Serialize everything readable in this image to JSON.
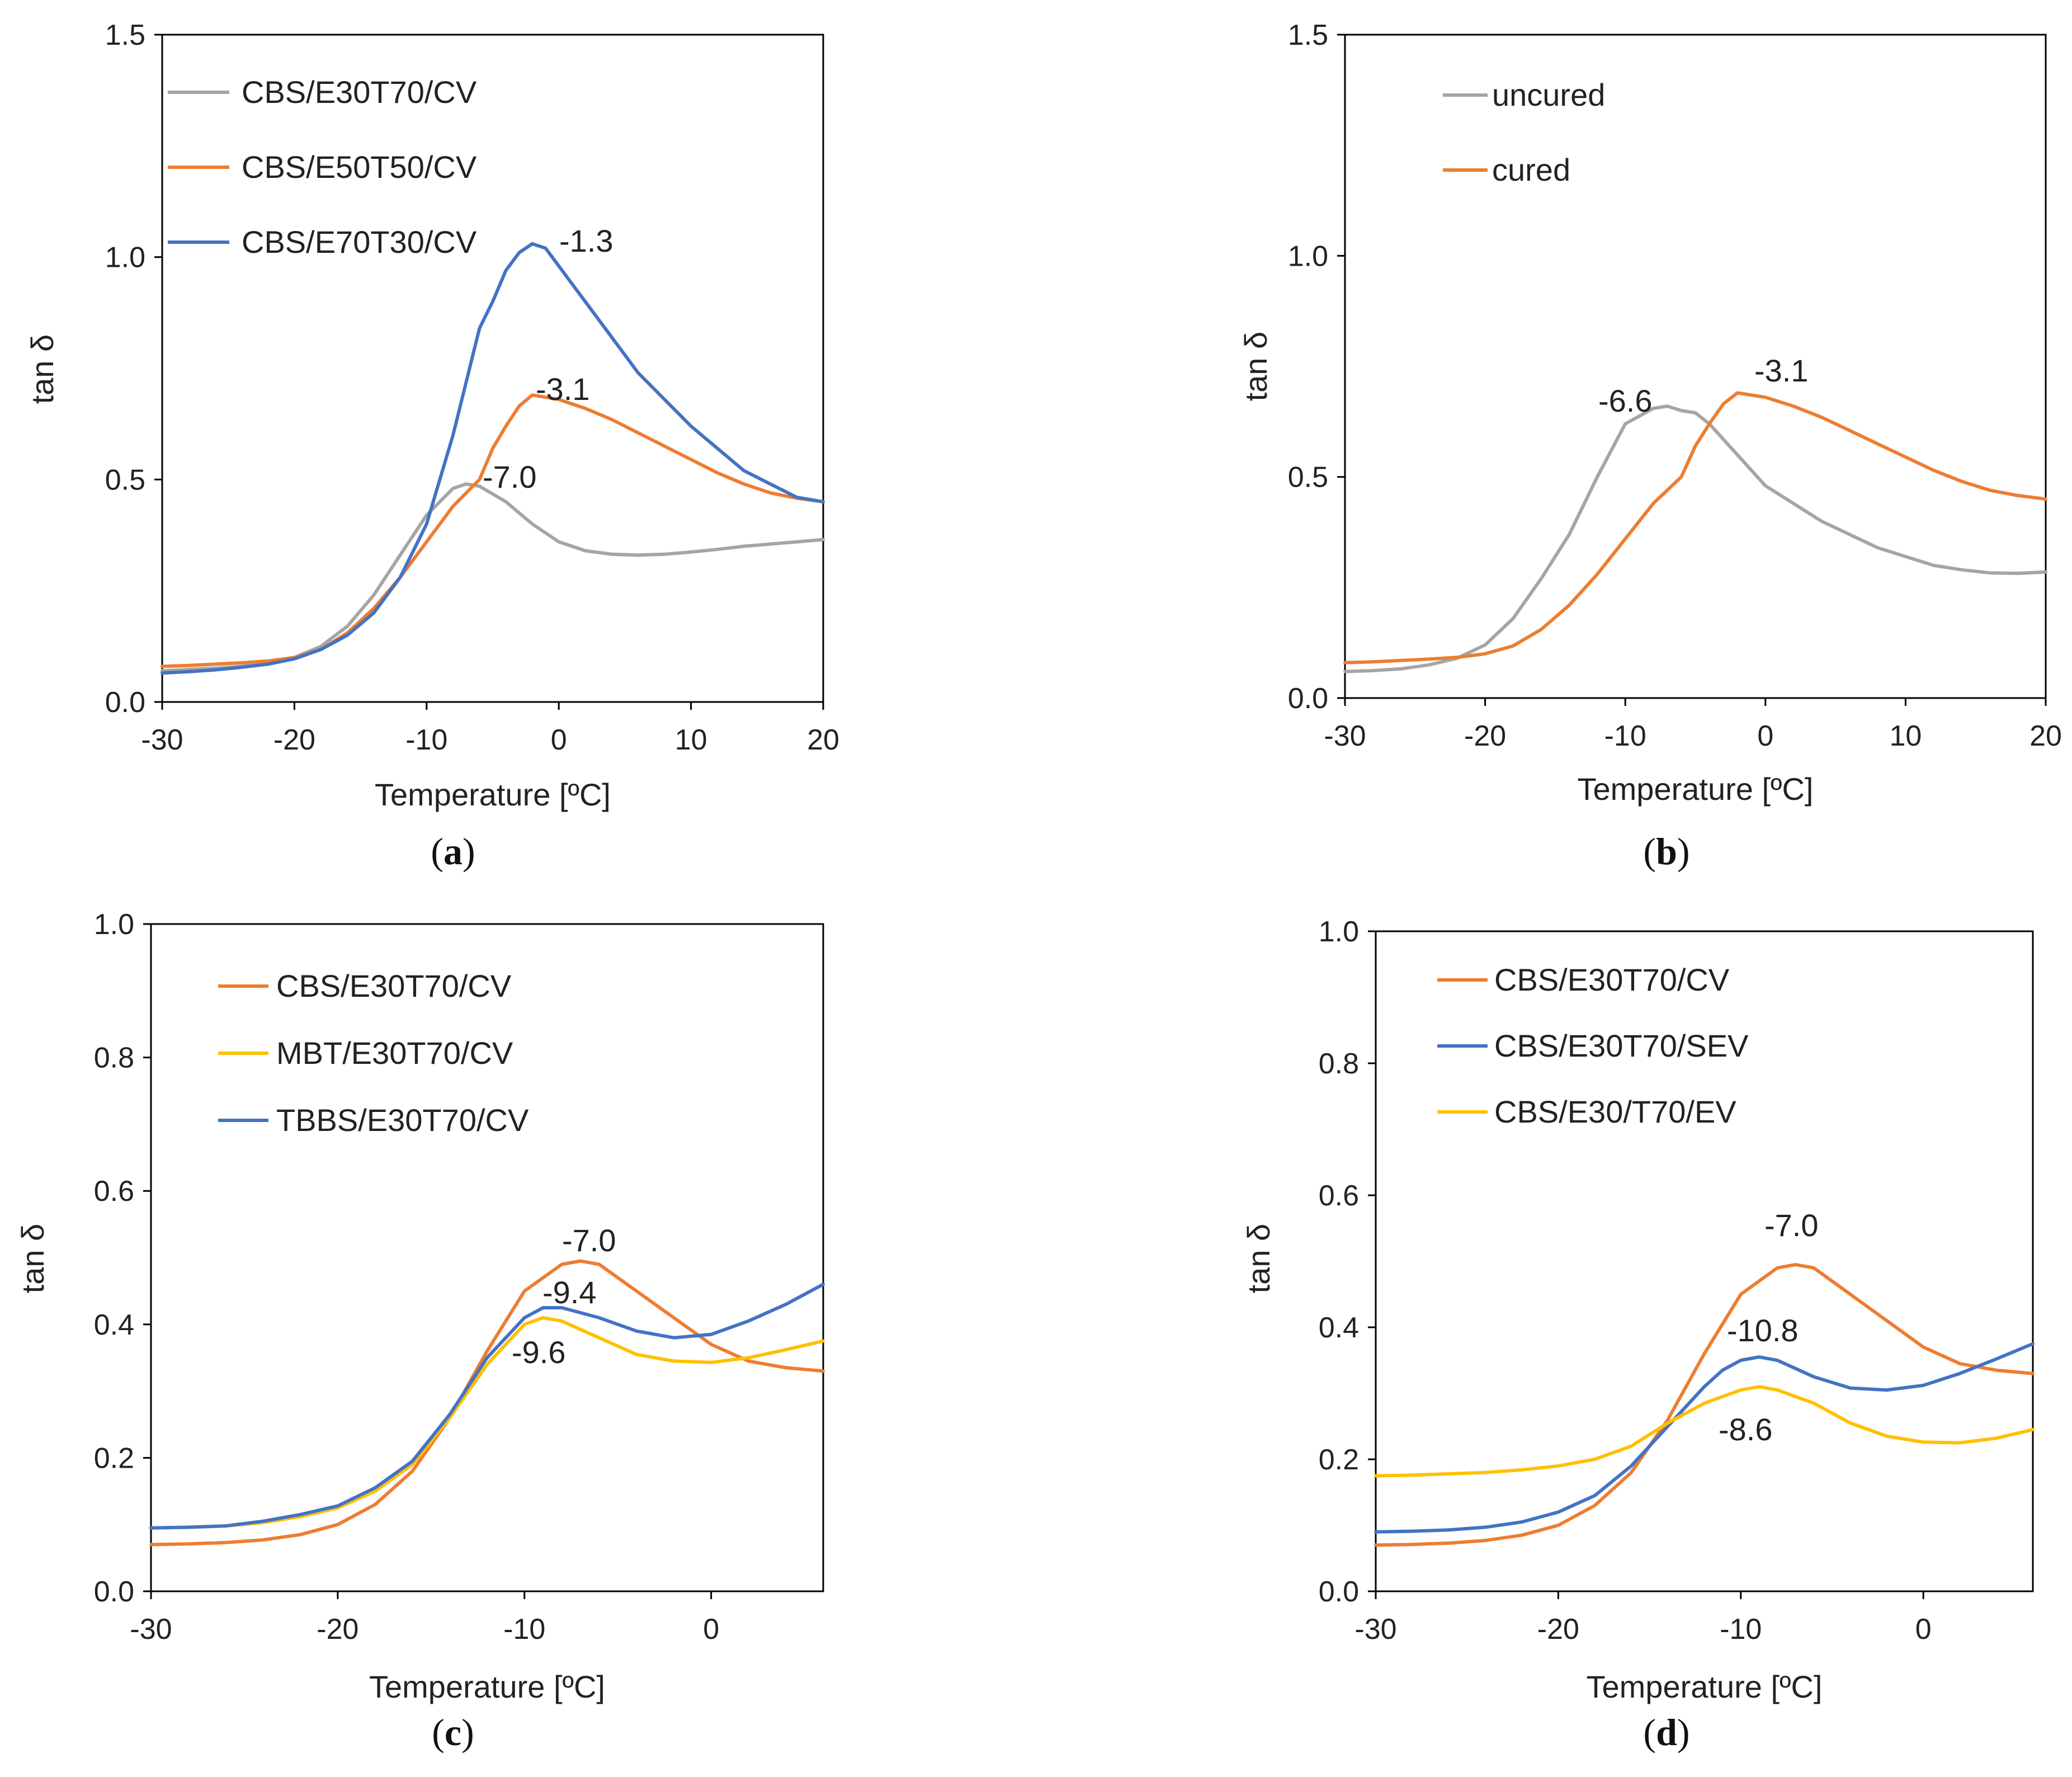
{
  "colors": {
    "gray": "#A5A5A5",
    "orange": "#ED7D31",
    "blue": "#4472C4",
    "yellow": "#FFC000"
  },
  "chart_data": [
    {
      "type": "line",
      "panel": "a",
      "caption_letter": "a",
      "xlabel": "Temperature [ºC]",
      "ylabel": "tan δ",
      "xlim": [
        -30,
        20
      ],
      "ylim": [
        0,
        1.5
      ],
      "xticks": [
        "-30",
        "-20",
        "-10",
        "0",
        "10",
        "20"
      ],
      "yticks": [
        "0.0",
        "0.5",
        "1.0",
        "1.5"
      ],
      "series": [
        {
          "name": "CBS/E30T70/CV",
          "color": "#A5A5A5",
          "x": [
            -30,
            -28,
            -26,
            -24,
            -22,
            -20,
            -18,
            -16,
            -14,
            -12,
            -10,
            -8,
            -7,
            -6,
            -4,
            -2,
            0,
            2,
            4,
            6,
            8,
            10,
            12,
            14,
            16,
            18,
            20
          ],
          "y": [
            0.07,
            0.073,
            0.076,
            0.08,
            0.087,
            0.1,
            0.125,
            0.17,
            0.24,
            0.33,
            0.42,
            0.48,
            0.49,
            0.485,
            0.45,
            0.4,
            0.36,
            0.34,
            0.332,
            0.33,
            0.332,
            0.337,
            0.343,
            0.35,
            0.355,
            0.36,
            0.365
          ]
        },
        {
          "name": "CBS/E50T50/CV",
          "color": "#ED7D31",
          "x": [
            -30,
            -28,
            -26,
            -24,
            -22,
            -20,
            -18,
            -16,
            -14,
            -12,
            -10,
            -8,
            -6,
            -5,
            -4,
            -3,
            -2,
            0,
            2,
            4,
            6,
            8,
            10,
            12,
            14,
            16,
            18,
            20
          ],
          "y": [
            0.08,
            0.082,
            0.085,
            0.088,
            0.092,
            0.1,
            0.118,
            0.155,
            0.21,
            0.28,
            0.36,
            0.44,
            0.5,
            0.57,
            0.62,
            0.665,
            0.69,
            0.68,
            0.66,
            0.635,
            0.605,
            0.575,
            0.545,
            0.515,
            0.49,
            0.47,
            0.458,
            0.45
          ]
        },
        {
          "name": "CBS/E70T30/CV",
          "color": "#4472C4",
          "x": [
            -30,
            -28,
            -26,
            -24,
            -22,
            -20,
            -18,
            -16,
            -14,
            -12,
            -10,
            -8,
            -6,
            -5,
            -4,
            -3,
            -2,
            -1,
            0,
            1,
            2,
            4,
            6,
            8,
            10,
            12,
            14,
            16,
            18,
            20
          ],
          "y": [
            0.065,
            0.068,
            0.072,
            0.078,
            0.085,
            0.097,
            0.118,
            0.15,
            0.2,
            0.28,
            0.4,
            0.6,
            0.84,
            0.9,
            0.97,
            1.01,
            1.03,
            1.02,
            0.98,
            0.94,
            0.9,
            0.82,
            0.74,
            0.68,
            0.62,
            0.57,
            0.52,
            0.49,
            0.46,
            0.45
          ]
        }
      ],
      "annotations": [
        "-1.3",
        "-3.1",
        "-7.0"
      ],
      "legend": [
        "CBS/E30T70/CV",
        "CBS/E50T50/CV",
        "CBS/E70T30/CV"
      ]
    },
    {
      "type": "line",
      "panel": "b",
      "caption_letter": "b",
      "xlabel": "Temperature [ºC]",
      "ylabel": "tan δ",
      "xlim": [
        -30,
        20
      ],
      "ylim": [
        0,
        1.5
      ],
      "xticks": [
        "-30",
        "-20",
        "-10",
        "0",
        "10",
        "20"
      ],
      "yticks": [
        "0.0",
        "0.5",
        "1.0",
        "1.5"
      ],
      "series": [
        {
          "name": "uncured",
          "color": "#A5A5A5",
          "x": [
            -30,
            -28,
            -26,
            -24,
            -22,
            -20,
            -18,
            -16,
            -14,
            -12,
            -10,
            -8,
            -7,
            -6,
            -5,
            -4,
            -2,
            0,
            2,
            4,
            6,
            8,
            10,
            12,
            14,
            16,
            18,
            20
          ],
          "y": [
            0.06,
            0.062,
            0.066,
            0.075,
            0.09,
            0.12,
            0.18,
            0.27,
            0.37,
            0.5,
            0.62,
            0.655,
            0.66,
            0.65,
            0.645,
            0.62,
            0.55,
            0.48,
            0.44,
            0.4,
            0.37,
            0.34,
            0.32,
            0.3,
            0.29,
            0.283,
            0.282,
            0.285
          ]
        },
        {
          "name": "cured",
          "color": "#ED7D31",
          "x": [
            -30,
            -28,
            -26,
            -24,
            -22,
            -20,
            -18,
            -16,
            -14,
            -12,
            -10,
            -8,
            -6,
            -5,
            -4,
            -3,
            -2,
            0,
            2,
            4,
            6,
            8,
            10,
            12,
            14,
            16,
            18,
            20
          ],
          "y": [
            0.08,
            0.082,
            0.085,
            0.088,
            0.092,
            0.1,
            0.118,
            0.155,
            0.21,
            0.28,
            0.36,
            0.44,
            0.5,
            0.57,
            0.62,
            0.665,
            0.69,
            0.68,
            0.66,
            0.635,
            0.605,
            0.575,
            0.545,
            0.515,
            0.49,
            0.47,
            0.458,
            0.45
          ]
        }
      ],
      "annotations": [
        "-6.6",
        "-3.1"
      ],
      "legend": [
        "uncured",
        "cured"
      ]
    },
    {
      "type": "line",
      "panel": "c",
      "caption_letter": "c",
      "xlabel": "Temperature [ºC]",
      "ylabel": "tan δ",
      "xlim": [
        -30,
        6
      ],
      "ylim": [
        0,
        1.0
      ],
      "xticks": [
        "-30",
        "-20",
        "-10",
        "0"
      ],
      "yticks": [
        "0.0",
        "0.2",
        "0.4",
        "0.6",
        "0.8",
        "1.0"
      ],
      "series": [
        {
          "name": "CBS/E30T70/CV",
          "color": "#ED7D31",
          "x": [
            -30,
            -28,
            -26,
            -24,
            -22,
            -20,
            -18,
            -16,
            -14,
            -12,
            -10,
            -8,
            -7,
            -6,
            -4,
            -2,
            0,
            2,
            4,
            6
          ],
          "y": [
            0.07,
            0.071,
            0.073,
            0.077,
            0.085,
            0.1,
            0.13,
            0.18,
            0.26,
            0.36,
            0.45,
            0.49,
            0.495,
            0.49,
            0.45,
            0.41,
            0.37,
            0.345,
            0.335,
            0.33
          ]
        },
        {
          "name": "MBT/E30T70/CV",
          "color": "#FFC000",
          "x": [
            -30,
            -28,
            -26,
            -24,
            -22,
            -20,
            -18,
            -16,
            -14,
            -12,
            -10,
            -9,
            -8,
            -6,
            -4,
            -2,
            0,
            2,
            4,
            6
          ],
          "y": [
            0.095,
            0.096,
            0.098,
            0.103,
            0.112,
            0.125,
            0.15,
            0.19,
            0.26,
            0.34,
            0.4,
            0.41,
            0.405,
            0.38,
            0.355,
            0.345,
            0.343,
            0.35,
            0.362,
            0.375
          ]
        },
        {
          "name": "TBBS/E30T70/CV",
          "color": "#4472C4",
          "x": [
            -30,
            -28,
            -26,
            -24,
            -22,
            -20,
            -18,
            -16,
            -14,
            -12,
            -10,
            -9,
            -8,
            -6,
            -4,
            -2,
            0,
            2,
            4,
            6
          ],
          "y": [
            0.095,
            0.096,
            0.098,
            0.105,
            0.115,
            0.128,
            0.155,
            0.195,
            0.265,
            0.35,
            0.41,
            0.425,
            0.425,
            0.41,
            0.39,
            0.38,
            0.385,
            0.405,
            0.43,
            0.46
          ]
        }
      ],
      "annotations": [
        "-7.0",
        "-9.4",
        "-9.6"
      ],
      "legend": [
        "CBS/E30T70/CV",
        "MBT/E30T70/CV",
        "TBBS/E30T70/CV"
      ]
    },
    {
      "type": "line",
      "panel": "d",
      "caption_letter": "d",
      "xlabel": "Temperature [ºC]",
      "ylabel": "tan δ",
      "xlim": [
        -30,
        6
      ],
      "ylim": [
        0,
        1.0
      ],
      "xticks": [
        "-30",
        "-20",
        "-10",
        "0"
      ],
      "yticks": [
        "0.0",
        "0.2",
        "0.4",
        "0.6",
        "0.8",
        "1.0"
      ],
      "series": [
        {
          "name": "CBS/E30T70/CV",
          "color": "#ED7D31",
          "x": [
            -30,
            -28,
            -26,
            -24,
            -22,
            -20,
            -18,
            -16,
            -14,
            -12,
            -10,
            -8,
            -7,
            -6,
            -4,
            -2,
            0,
            2,
            4,
            6
          ],
          "y": [
            0.07,
            0.071,
            0.073,
            0.077,
            0.085,
            0.1,
            0.13,
            0.18,
            0.26,
            0.36,
            0.45,
            0.49,
            0.495,
            0.49,
            0.45,
            0.41,
            0.37,
            0.345,
            0.335,
            0.33
          ]
        },
        {
          "name": "CBS/E30T70/SEV",
          "color": "#4472C4",
          "x": [
            -30,
            -28,
            -26,
            -24,
            -22,
            -20,
            -18,
            -16,
            -14,
            -12,
            -11,
            -10,
            -9,
            -8,
            -6,
            -4,
            -2,
            0,
            2,
            4,
            6
          ],
          "y": [
            0.09,
            0.091,
            0.093,
            0.097,
            0.105,
            0.12,
            0.145,
            0.19,
            0.25,
            0.31,
            0.335,
            0.35,
            0.355,
            0.35,
            0.325,
            0.308,
            0.305,
            0.312,
            0.33,
            0.352,
            0.375
          ]
        },
        {
          "name": "CBS/E30/T70/EV",
          "color": "#FFC000",
          "x": [
            -30,
            -28,
            -26,
            -24,
            -22,
            -20,
            -18,
            -16,
            -14,
            -12,
            -10,
            -9,
            -8,
            -6,
            -4,
            -2,
            0,
            2,
            4,
            6
          ],
          "y": [
            0.175,
            0.176,
            0.178,
            0.18,
            0.184,
            0.19,
            0.2,
            0.22,
            0.255,
            0.285,
            0.305,
            0.31,
            0.305,
            0.285,
            0.255,
            0.235,
            0.226,
            0.225,
            0.232,
            0.245
          ]
        }
      ],
      "annotations": [
        "-7.0",
        "-10.8",
        "-8.6"
      ],
      "legend": [
        "CBS/E30T70/CV",
        "CBS/E30T70/SEV",
        "CBS/E30/T70/EV"
      ]
    }
  ]
}
